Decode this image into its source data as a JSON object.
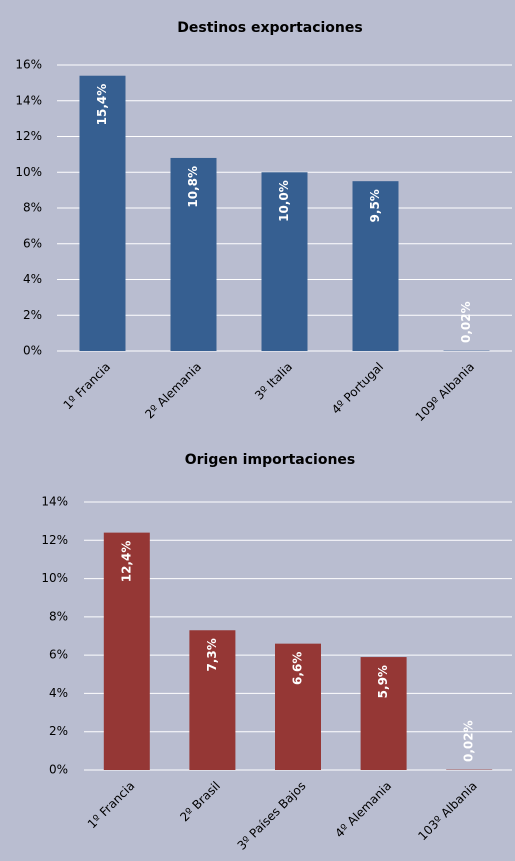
{
  "chart_data": [
    {
      "type": "bar",
      "title": "Destinos exportaciones",
      "categories": [
        "1º Francia",
        "2º Alemania",
        "3º Italia",
        "4º Portugal",
        "109º Albania"
      ],
      "values": [
        15.4,
        10.8,
        10.0,
        9.5,
        0.02
      ],
      "value_labels": [
        "15,4%",
        "10,8%",
        "10,0%",
        "9,5%",
        "0,02%"
      ],
      "color": "#365f91",
      "ylim": [
        0,
        16
      ],
      "yticks": [
        {
          "value": 0,
          "label": "0%"
        },
        {
          "value": 2,
          "label": "2%"
        },
        {
          "value": 4,
          "label": "4%"
        },
        {
          "value": 6,
          "label": "6%"
        },
        {
          "value": 8,
          "label": "8%"
        },
        {
          "value": 10,
          "label": "10%"
        },
        {
          "value": 12,
          "label": "12%"
        },
        {
          "value": 14,
          "label": "14%"
        },
        {
          "value": 16,
          "label": "16%"
        }
      ],
      "grid": true
    },
    {
      "type": "bar",
      "title": "Origen importaciones",
      "categories": [
        "1º Francia",
        "2º Brasil",
        "3º Países Bajos",
        "4º Alemania",
        "103º Albania"
      ],
      "values": [
        12.4,
        7.3,
        6.6,
        5.9,
        0.02
      ],
      "value_labels": [
        "12,4%",
        "7,3%",
        "6,6%",
        "5,9%",
        "0,02%"
      ],
      "color": "#953735",
      "ylim": [
        0,
        14
      ],
      "yticks": [
        {
          "value": 0,
          "label": "0%"
        },
        {
          "value": 2,
          "label": "2%"
        },
        {
          "value": 4,
          "label": "4%"
        },
        {
          "value": 6,
          "label": "6%"
        },
        {
          "value": 8,
          "label": "8%"
        },
        {
          "value": 10,
          "label": "10%"
        },
        {
          "value": 12,
          "label": "12%"
        },
        {
          "value": 14,
          "label": "14%"
        }
      ],
      "grid": true
    }
  ]
}
